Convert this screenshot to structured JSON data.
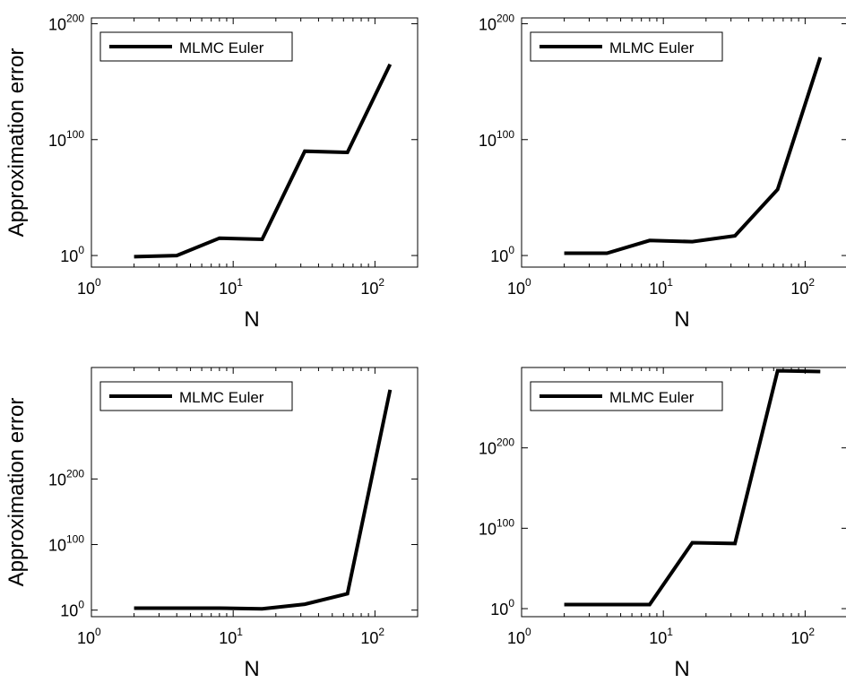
{
  "chart_data": [
    {
      "type": "line",
      "xscale": "log",
      "yscale": "log",
      "xlabel": "N",
      "ylabel": "Approximation error",
      "xlim": [
        1,
        200
      ],
      "ylim_exponent": [
        -10,
        205
      ],
      "xticks": [
        {
          "base": "10",
          "exp": "0"
        },
        {
          "base": "10",
          "exp": "1"
        },
        {
          "base": "10",
          "exp": "2"
        }
      ],
      "yticks": [
        {
          "base": "10",
          "exp": "0",
          "value": 0
        },
        {
          "base": "10",
          "exp": "100",
          "value": 100
        },
        {
          "base": "10",
          "exp": "200",
          "value": 200
        }
      ],
      "legend": "top-left",
      "series": [
        {
          "name": "MLMC Euler",
          "x": [
            2,
            4,
            8,
            16,
            32,
            64,
            128
          ],
          "y_exponent": [
            -1,
            0,
            15,
            14,
            90,
            89,
            165
          ]
        }
      ]
    },
    {
      "type": "line",
      "xscale": "log",
      "yscale": "log",
      "xlabel": "N",
      "ylabel": "",
      "xlim": [
        1,
        200
      ],
      "ylim_exponent": [
        -10,
        205
      ],
      "xticks": [
        {
          "base": "10",
          "exp": "0"
        },
        {
          "base": "10",
          "exp": "1"
        },
        {
          "base": "10",
          "exp": "2"
        }
      ],
      "yticks": [
        {
          "base": "10",
          "exp": "0",
          "value": 0
        },
        {
          "base": "10",
          "exp": "100",
          "value": 100
        },
        {
          "base": "10",
          "exp": "200",
          "value": 200
        }
      ],
      "legend": "top-left",
      "series": [
        {
          "name": "MLMC Euler",
          "x": [
            2,
            4,
            8,
            16,
            32,
            64,
            128
          ],
          "y_exponent": [
            2,
            2,
            13,
            12,
            17,
            57,
            171
          ]
        }
      ]
    },
    {
      "type": "line",
      "xscale": "log",
      "yscale": "log",
      "xlabel": "N",
      "ylabel": "Approximation error",
      "xlim": [
        1,
        200
      ],
      "ylim_exponent": [
        -10,
        370
      ],
      "xticks": [
        {
          "base": "10",
          "exp": "0"
        },
        {
          "base": "10",
          "exp": "1"
        },
        {
          "base": "10",
          "exp": "2"
        }
      ],
      "yticks": [
        {
          "base": "10",
          "exp": "0",
          "value": 0
        },
        {
          "base": "10",
          "exp": "100",
          "value": 100
        },
        {
          "base": "10",
          "exp": "200",
          "value": 200
        }
      ],
      "legend": "top-left",
      "series": [
        {
          "name": "MLMC Euler",
          "x": [
            2,
            4,
            8,
            16,
            32,
            64,
            128
          ],
          "y_exponent": [
            3,
            3,
            3,
            2,
            9,
            25,
            336
          ]
        }
      ]
    },
    {
      "type": "line",
      "xscale": "log",
      "yscale": "log",
      "xlabel": "N",
      "ylabel": "",
      "xlim": [
        1,
        200
      ],
      "ylim_exponent": [
        -10,
        300
      ],
      "xticks": [
        {
          "base": "10",
          "exp": "0"
        },
        {
          "base": "10",
          "exp": "1"
        },
        {
          "base": "10",
          "exp": "2"
        }
      ],
      "yticks": [
        {
          "base": "10",
          "exp": "0",
          "value": 0
        },
        {
          "base": "10",
          "exp": "100",
          "value": 100
        },
        {
          "base": "10",
          "exp": "200",
          "value": 200
        }
      ],
      "legend": "top-left",
      "series": [
        {
          "name": "MLMC Euler",
          "x": [
            2,
            4,
            8,
            16,
            32,
            64,
            128
          ],
          "y_exponent": [
            5,
            5,
            5,
            82,
            81,
            296,
            295
          ]
        }
      ]
    }
  ],
  "colors": {
    "line": "#000000",
    "axis": "#000000",
    "background": "#ffffff"
  }
}
